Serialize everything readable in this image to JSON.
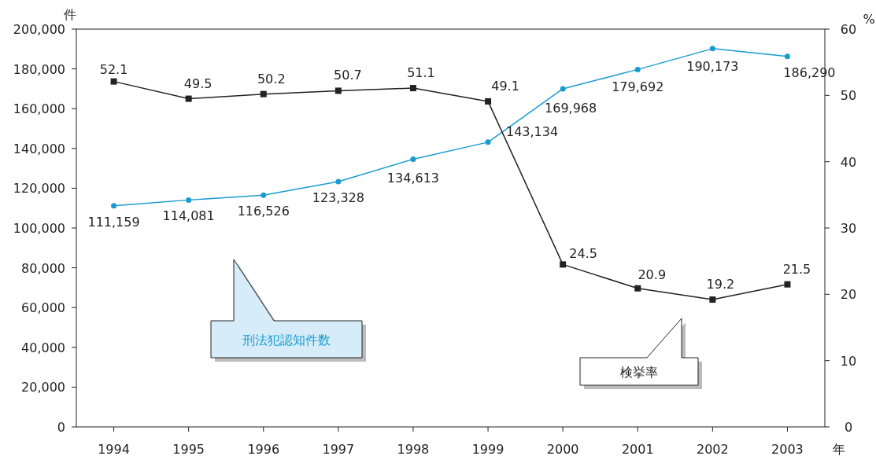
{
  "chart_data": {
    "type": "line",
    "categories": [
      "1994",
      "1995",
      "1996",
      "1997",
      "1998",
      "1999",
      "2000",
      "2001",
      "2002",
      "2003"
    ],
    "xlabel": "年",
    "ylabel": "件",
    "y2label": "%",
    "series": [
      {
        "name": "刑法犯認知件数",
        "color": "#1a9bd0",
        "marker": "circle",
        "values": [
          111159,
          114081,
          116526,
          123328,
          134613,
          143134,
          169968,
          179692,
          190173,
          186290
        ],
        "value_labels": [
          "111,159",
          "114,081",
          "116,526",
          "123,328",
          "134,613",
          "143,134",
          "169,968",
          "179,692",
          "190,173",
          "186,290"
        ]
      },
      {
        "name": "検挙率",
        "color": "#222222",
        "marker": "square",
        "axis": "y2",
        "values": [
          52.1,
          49.5,
          50.2,
          50.7,
          51.1,
          49.1,
          24.5,
          20.9,
          19.2,
          21.5
        ],
        "value_labels": [
          "52.1",
          "49.5",
          "50.2",
          "50.7",
          "51.1",
          "49.1",
          "24.5",
          "20.9",
          "19.2",
          "21.5"
        ]
      }
    ],
    "ylim": [
      0,
      200000
    ],
    "yticks": [
      {
        "value": 0,
        "label": "0"
      },
      {
        "value": 20000,
        "label": "20,000"
      },
      {
        "value": 40000,
        "label": "40,000"
      },
      {
        "value": 60000,
        "label": "60,000"
      },
      {
        "value": 80000,
        "label": "80,000"
      },
      {
        "value": 100000,
        "label": "100,000"
      },
      {
        "value": 120000,
        "label": "120,000"
      },
      {
        "value": 140000,
        "label": "140,000"
      },
      {
        "value": 160000,
        "label": "160,000"
      },
      {
        "value": 180000,
        "label": "180,000"
      },
      {
        "value": 200000,
        "label": "200,000"
      }
    ],
    "y2lim": [
      0,
      60
    ],
    "y2ticks": [
      0,
      10,
      20,
      30,
      40,
      50,
      60
    ],
    "grid": false,
    "line_style": "solid"
  }
}
